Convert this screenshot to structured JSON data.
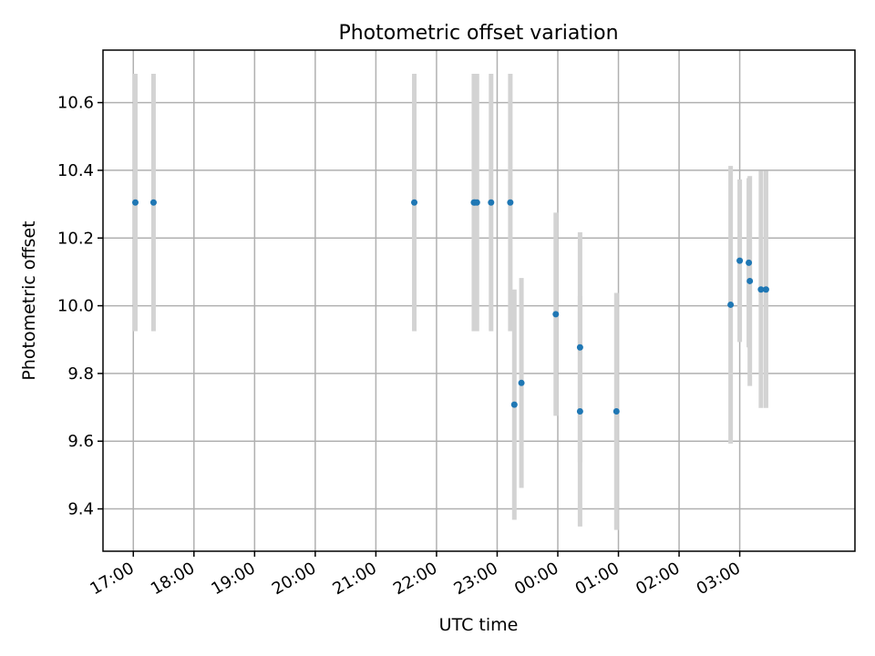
{
  "chart_data": {
    "type": "scatter",
    "title": "Photometric offset variation",
    "xlabel": "UTC time",
    "ylabel": "Photometric offset",
    "x_unit": "hours (local day, 17:00 → 03:00 next day)",
    "xlim": [
      16.5,
      28.9
    ],
    "ylim": [
      9.275,
      10.755
    ],
    "x_ticks": [
      17,
      18,
      19,
      20,
      21,
      22,
      23,
      24,
      25,
      26,
      27
    ],
    "x_tick_labels": [
      "17:00",
      "18:00",
      "19:00",
      "20:00",
      "21:00",
      "22:00",
      "23:00",
      "00:00",
      "01:00",
      "02:00",
      "03:00"
    ],
    "y_ticks": [
      9.4,
      9.6,
      9.8,
      10.0,
      10.2,
      10.4,
      10.6
    ],
    "y_tick_labels": [
      "9.4",
      "9.6",
      "9.8",
      "10.0",
      "10.2",
      "10.4",
      "10.6"
    ],
    "grid": true,
    "marker_color": "#1f77b4",
    "errorbar_color": "#d3d3d3",
    "points": [
      {
        "x": "17:02",
        "y": 10.305,
        "err": 0.38
      },
      {
        "x": "17:20",
        "y": 10.305,
        "err": 0.38
      },
      {
        "x": "21:38",
        "y": 10.305,
        "err": 0.38
      },
      {
        "x": "22:37",
        "y": 10.305,
        "err": 0.38
      },
      {
        "x": "22:38",
        "y": 10.305,
        "err": 0.38
      },
      {
        "x": "22:40",
        "y": 10.305,
        "err": 0.38
      },
      {
        "x": "22:54",
        "y": 10.305,
        "err": 0.38
      },
      {
        "x": "23:13",
        "y": 10.305,
        "err": 0.38
      },
      {
        "x": "23:17",
        "y": 9.708,
        "err": 0.34
      },
      {
        "x": "23:24",
        "y": 9.772,
        "err": 0.31
      },
      {
        "x": "23:58",
        "y": 9.975,
        "err": 0.3
      },
      {
        "x": "00:22",
        "y": 9.877,
        "err": 0.34
      },
      {
        "x": "00:22",
        "y": 9.688,
        "err": 0.34
      },
      {
        "x": "00:58",
        "y": 9.688,
        "err": 0.35
      },
      {
        "x": "02:51",
        "y": 10.003,
        "err": 0.41
      },
      {
        "x": "03:00",
        "y": 10.133,
        "err": 0.24
      },
      {
        "x": "03:09",
        "y": 10.127,
        "err": 0.25
      },
      {
        "x": "03:10",
        "y": 10.073,
        "err": 0.31
      },
      {
        "x": "03:21",
        "y": 10.048,
        "err": 0.35
      },
      {
        "x": "03:26",
        "y": 10.048,
        "err": 0.35
      }
    ]
  }
}
